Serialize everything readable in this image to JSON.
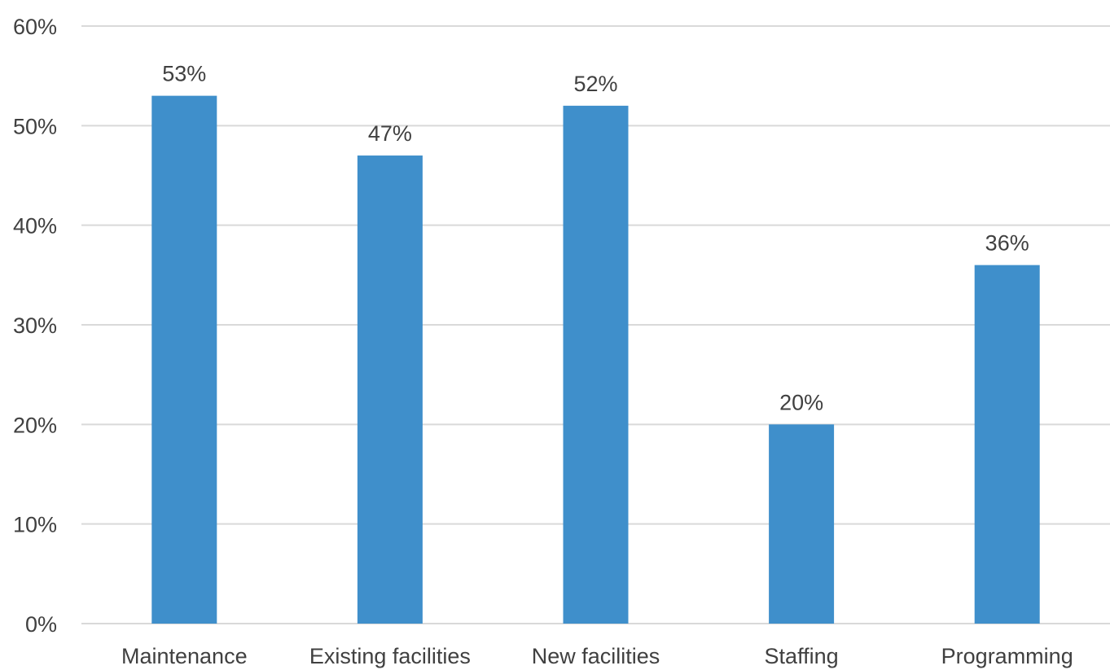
{
  "chart_data": {
    "type": "bar",
    "categories": [
      "Maintenance",
      "Existing facilities",
      "New facilities",
      "Staffing",
      "Programming"
    ],
    "values": [
      53,
      47,
      52,
      20,
      36
    ],
    "data_labels": [
      "53%",
      "47%",
      "52%",
      "20%",
      "36%"
    ],
    "title": "",
    "xlabel": "",
    "ylabel": "",
    "ylim": [
      0,
      60
    ],
    "y_ticks": [
      0,
      10,
      20,
      30,
      40,
      50,
      60
    ],
    "y_tick_labels": [
      "0%",
      "10%",
      "20%",
      "30%",
      "40%",
      "50%",
      "60%"
    ],
    "grid": true,
    "legend": "none",
    "bar_color": "#3f8fcb",
    "grid_color": "#d9d9d9",
    "text_color": "#404040"
  }
}
